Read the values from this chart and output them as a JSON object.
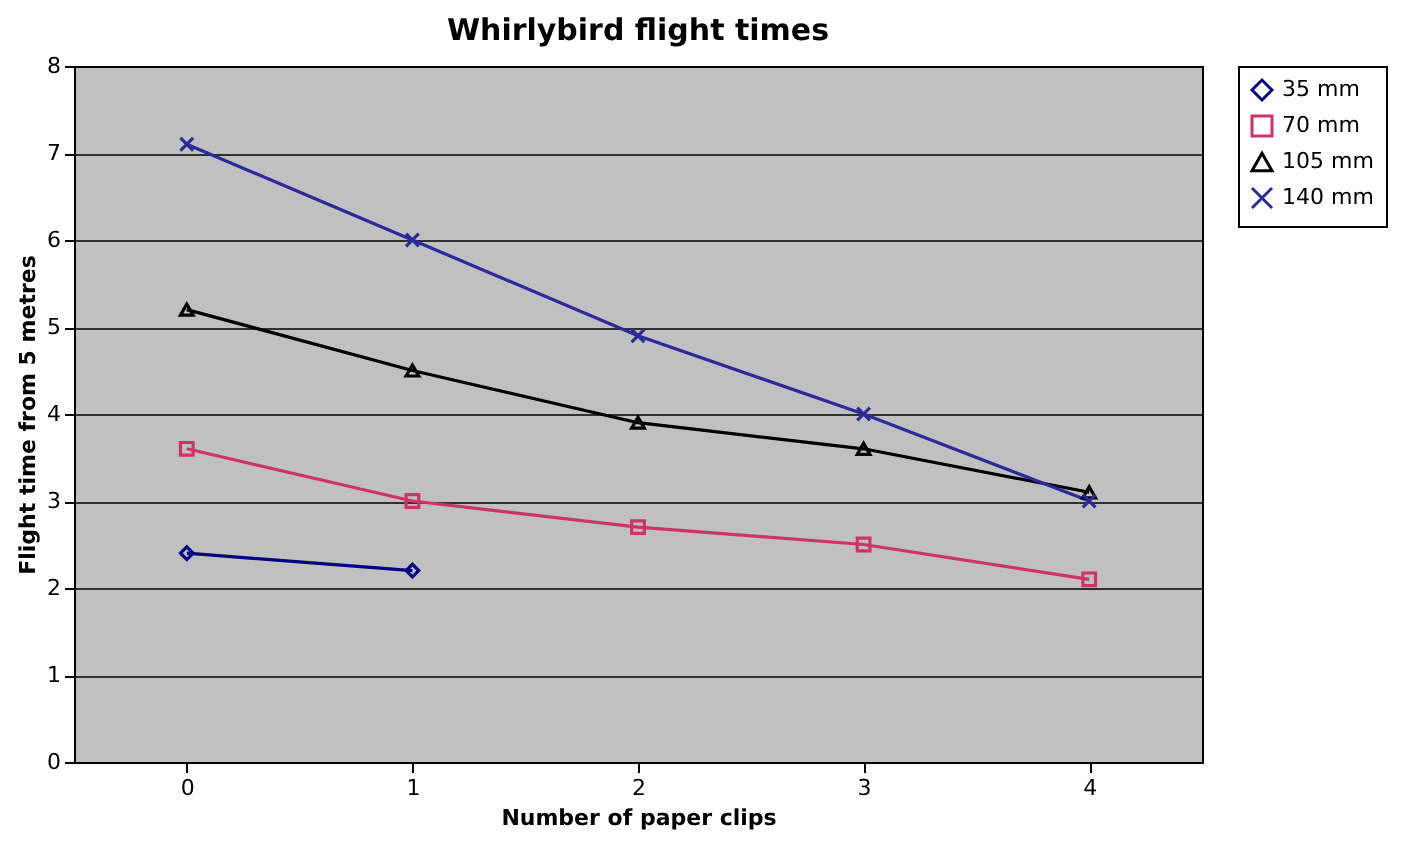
{
  "chart_data": {
    "type": "line",
    "title": "Whirlybird flight times",
    "xlabel": "Number of paper clips",
    "ylabel": "Flight time from 5 metres",
    "categories": [
      "0",
      "1",
      "2",
      "3",
      "4"
    ],
    "series": [
      {
        "name": "35 mm",
        "color": "#000080",
        "marker": "diamond",
        "values": [
          2.4,
          2.2,
          null,
          null,
          null
        ]
      },
      {
        "name": "70 mm",
        "color": "#cc3366",
        "marker": "square",
        "values": [
          3.6,
          3.0,
          2.7,
          2.5,
          2.1
        ]
      },
      {
        "name": "105 mm",
        "color": "#000000",
        "marker": "triangle",
        "values": [
          5.2,
          4.5,
          3.9,
          3.6,
          3.1
        ]
      },
      {
        "name": "140 mm",
        "color": "#2a2a9a",
        "marker": "cross",
        "values": [
          7.1,
          6.0,
          4.9,
          4.0,
          3.0
        ]
      }
    ],
    "ylim": [
      0,
      8
    ],
    "yticks": [
      0,
      1,
      2,
      3,
      4,
      5,
      6,
      7,
      8
    ],
    "grid": "y",
    "legend": "right",
    "line_style": "solid"
  }
}
